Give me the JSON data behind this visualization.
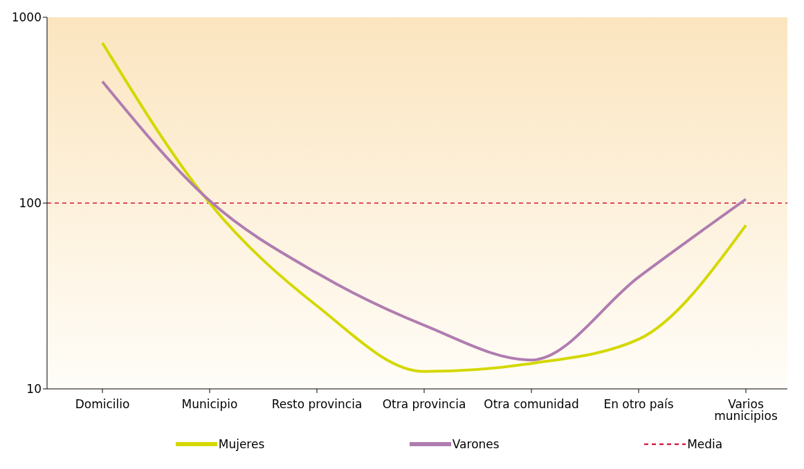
{
  "chart_data": {
    "type": "line",
    "categories": [
      "Domicilio",
      "Municipio",
      "Resto provincia",
      "Otra provincia",
      "Otra comunidad",
      "En otro país",
      "Varios municipios"
    ],
    "series": [
      {
        "name": "Mujeres",
        "color": "#d4d800",
        "values": [
          728,
          100,
          28,
          12.4,
          13.7,
          18.5,
          76
        ]
      },
      {
        "name": "Varones",
        "color": "#b07cb0",
        "values": [
          451,
          103,
          42,
          22,
          14.3,
          40,
          105
        ]
      }
    ],
    "ref_lines": [
      {
        "axis": "y",
        "value": 100,
        "label": "Media",
        "color": "#d0103a",
        "line_style": "dashed"
      }
    ],
    "log": "y",
    "ylim": [
      10,
      1000
    ],
    "yticks": [
      10,
      100,
      1000
    ],
    "legend": "bottom",
    "marker": "none",
    "line_style": "solid"
  }
}
